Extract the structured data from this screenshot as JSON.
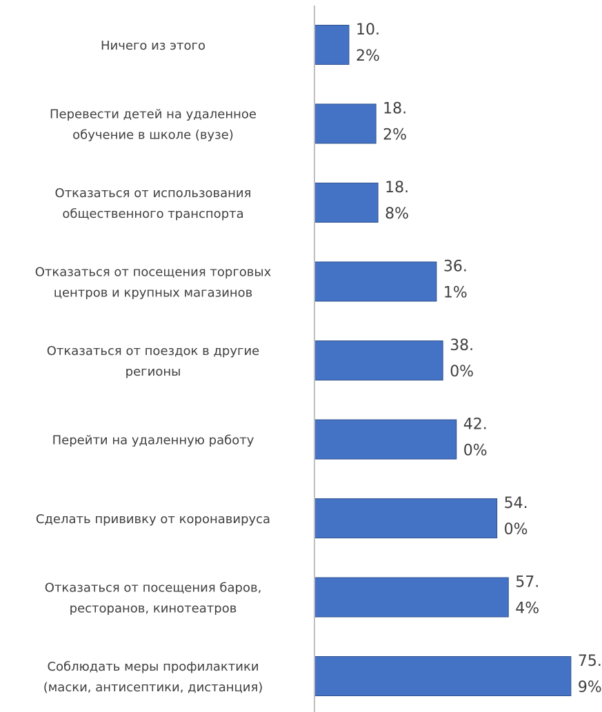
{
  "chart_data": {
    "type": "bar",
    "orientation": "horizontal",
    "categories": [
      [
        "Ничего из этого"
      ],
      [
        "Перевести детей на удаленное",
        "обучение в школе (вузе)"
      ],
      [
        "Отказаться от использования",
        "общественного транспорта"
      ],
      [
        "Отказаться от посещения торговых",
        "центров и крупных магазинов"
      ],
      [
        "Отказаться от поездок в другие",
        "регионы"
      ],
      [
        "Перейти на удаленную работу"
      ],
      [
        "Сделать прививку от коронавируса"
      ],
      [
        "Отказаться от посещения баров,",
        "ресторанов, кинотеатров"
      ],
      [
        "Соблюдать меры профилактики",
        "(маски, антисептики, дистанция)"
      ]
    ],
    "values": [
      10.2,
      18.2,
      18.8,
      36.1,
      38.0,
      42.0,
      54.0,
      57.4,
      75.9
    ],
    "data_labels": [
      [
        "10.",
        "2%"
      ],
      [
        "18.",
        "2%"
      ],
      [
        "18.",
        "8%"
      ],
      [
        "36.",
        "1%"
      ],
      [
        "38.",
        "0%"
      ],
      [
        "42.",
        "0%"
      ],
      [
        "54.",
        "0%"
      ],
      [
        "57.",
        "4%"
      ],
      [
        "75.",
        "9%"
      ]
    ],
    "unit": "%",
    "bar_color": "#4472C4",
    "bar_edge_color": "#2F528F",
    "axis_color": "#BFBFBF",
    "xlim": [
      0,
      80
    ],
    "grid": false,
    "legend": "none",
    "title": "",
    "xlabel": "",
    "ylabel": ""
  }
}
